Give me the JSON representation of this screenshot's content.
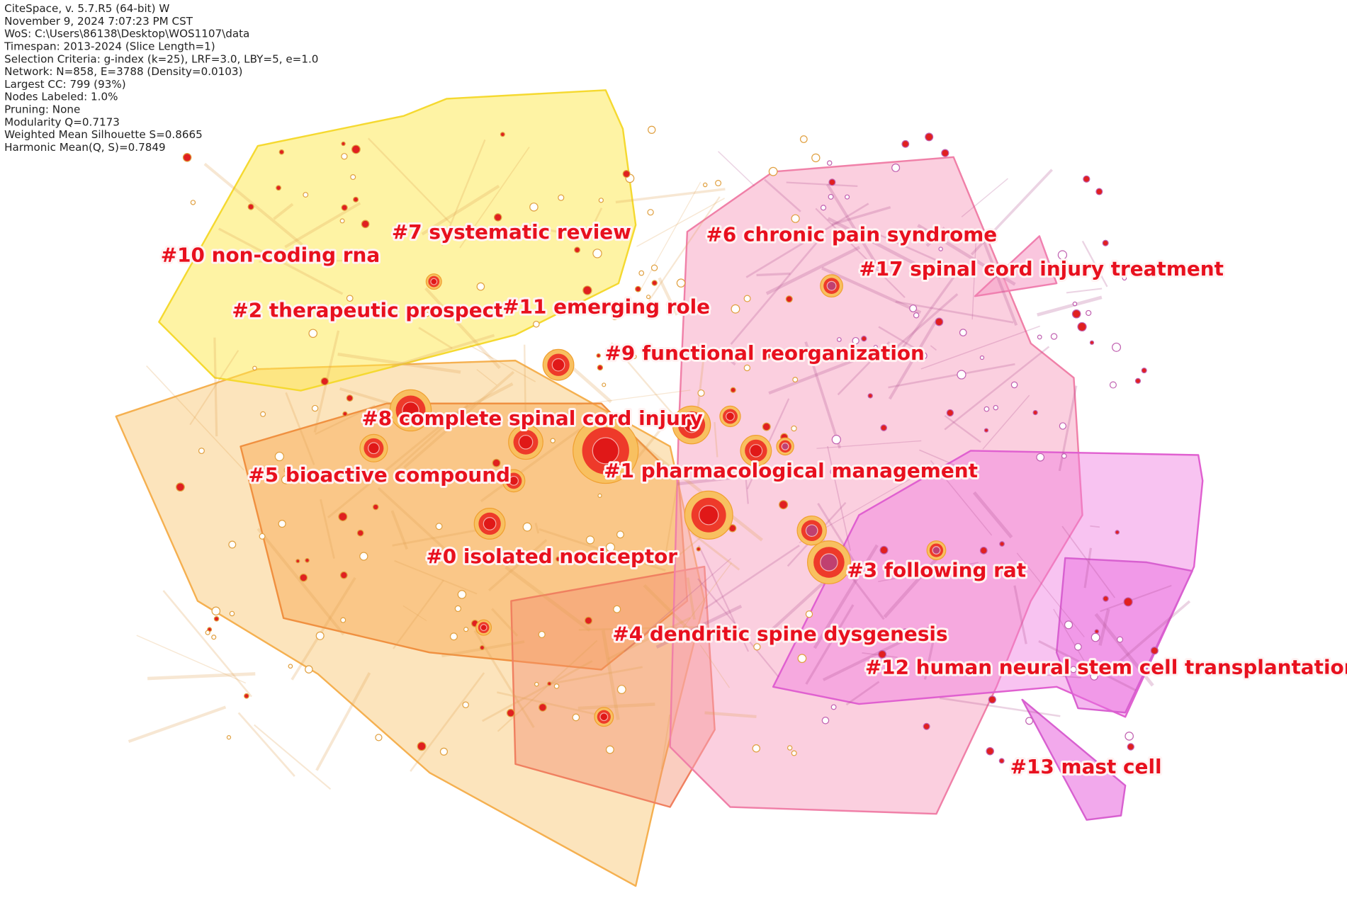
{
  "info": [
    "CiteSpace, v. 5.7.R5 (64-bit) W",
    "November 9, 2024 7:07:23 PM CST",
    "WoS: C:\\Users\\86138\\Desktop\\WOS1107\\data",
    "Timespan: 2013-2024 (Slice Length=1)",
    "Selection Criteria: g-index (k=25), LRF=3.0, LBY=5, e=1.0",
    "Network: N=858, E=3788 (Density=0.0103)",
    "Largest CC: 799 (93%)",
    "Nodes Labeled: 1.0%",
    "Pruning: None",
    "Modularity Q=0.7173",
    "Weighted Mean Silhouette S=0.8665",
    "Harmonic Mean(Q, S)=0.7849"
  ],
  "clusters": [
    "#10 non-coding rna",
    "#7 systematic review",
    "#6 chronic pain syndrome",
    "#17 spinal cord injury treatment",
    "#2 therapeutic prospect",
    "#11 emerging role",
    "#9 functional reorganization",
    "#8 complete spinal cord injury",
    "#1 pharmacological management",
    "#5 bioactive compound",
    "#0 isolated nociceptor",
    "#3 following rat",
    "#4 dendritic spine dysgenesis",
    "#12 human neural stem cell transplantation",
    "#13 mast cell"
  ]
}
